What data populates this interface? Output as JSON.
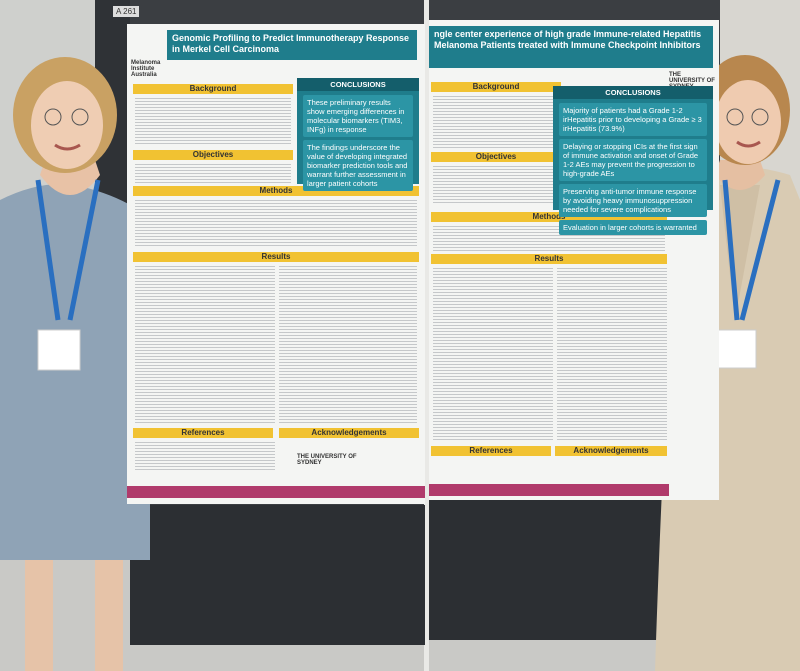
{
  "sign": "A 261",
  "left_poster": {
    "title": "Genomic Profiling to Predict Immunotherapy Response in Merkel Cell Carcinoma",
    "sections": [
      "Background",
      "Objectives",
      "Methods",
      "Results",
      "References",
      "Acknowledgements"
    ],
    "conclusions_header": "CONCLUSIONS",
    "conclusions": [
      "These preliminary results show emerging differences in molecular biomarkers (TIM3, INFg) in response",
      "The findings underscore the value of developing integrated biomarker prediction tools and warrant further assessment in larger patient cohorts"
    ],
    "logos": [
      "Melanoma Institute Australia",
      "THE UNIVERSITY OF SYDNEY"
    ]
  },
  "right_poster": {
    "title": "ngle center experience of high grade Immune-related Hepatitis Melanoma Patients treated with Immune Checkpoint Inhibitors",
    "sections": [
      "Background",
      "Objectives",
      "Methods",
      "Results",
      "References",
      "Acknowledgements"
    ],
    "conclusions_header": "CONCLUSIONS",
    "conclusions": [
      "Majority of patients had a Grade 1-2 irHepatitis prior to developing a Grade ≥ 3 irHepatitis (73.9%)",
      "Delaying or stopping ICIs at the first sign of immune activation and onset of Grade 1-2 AEs may prevent the progression to high-grade AEs",
      "Preserving anti-tumor immune response by avoiding heavy immunosuppression needed for severe complications",
      "Evaluation in larger cohorts is warranted"
    ],
    "logos": [
      "THE UNIVERSITY OF SYDNEY"
    ]
  }
}
